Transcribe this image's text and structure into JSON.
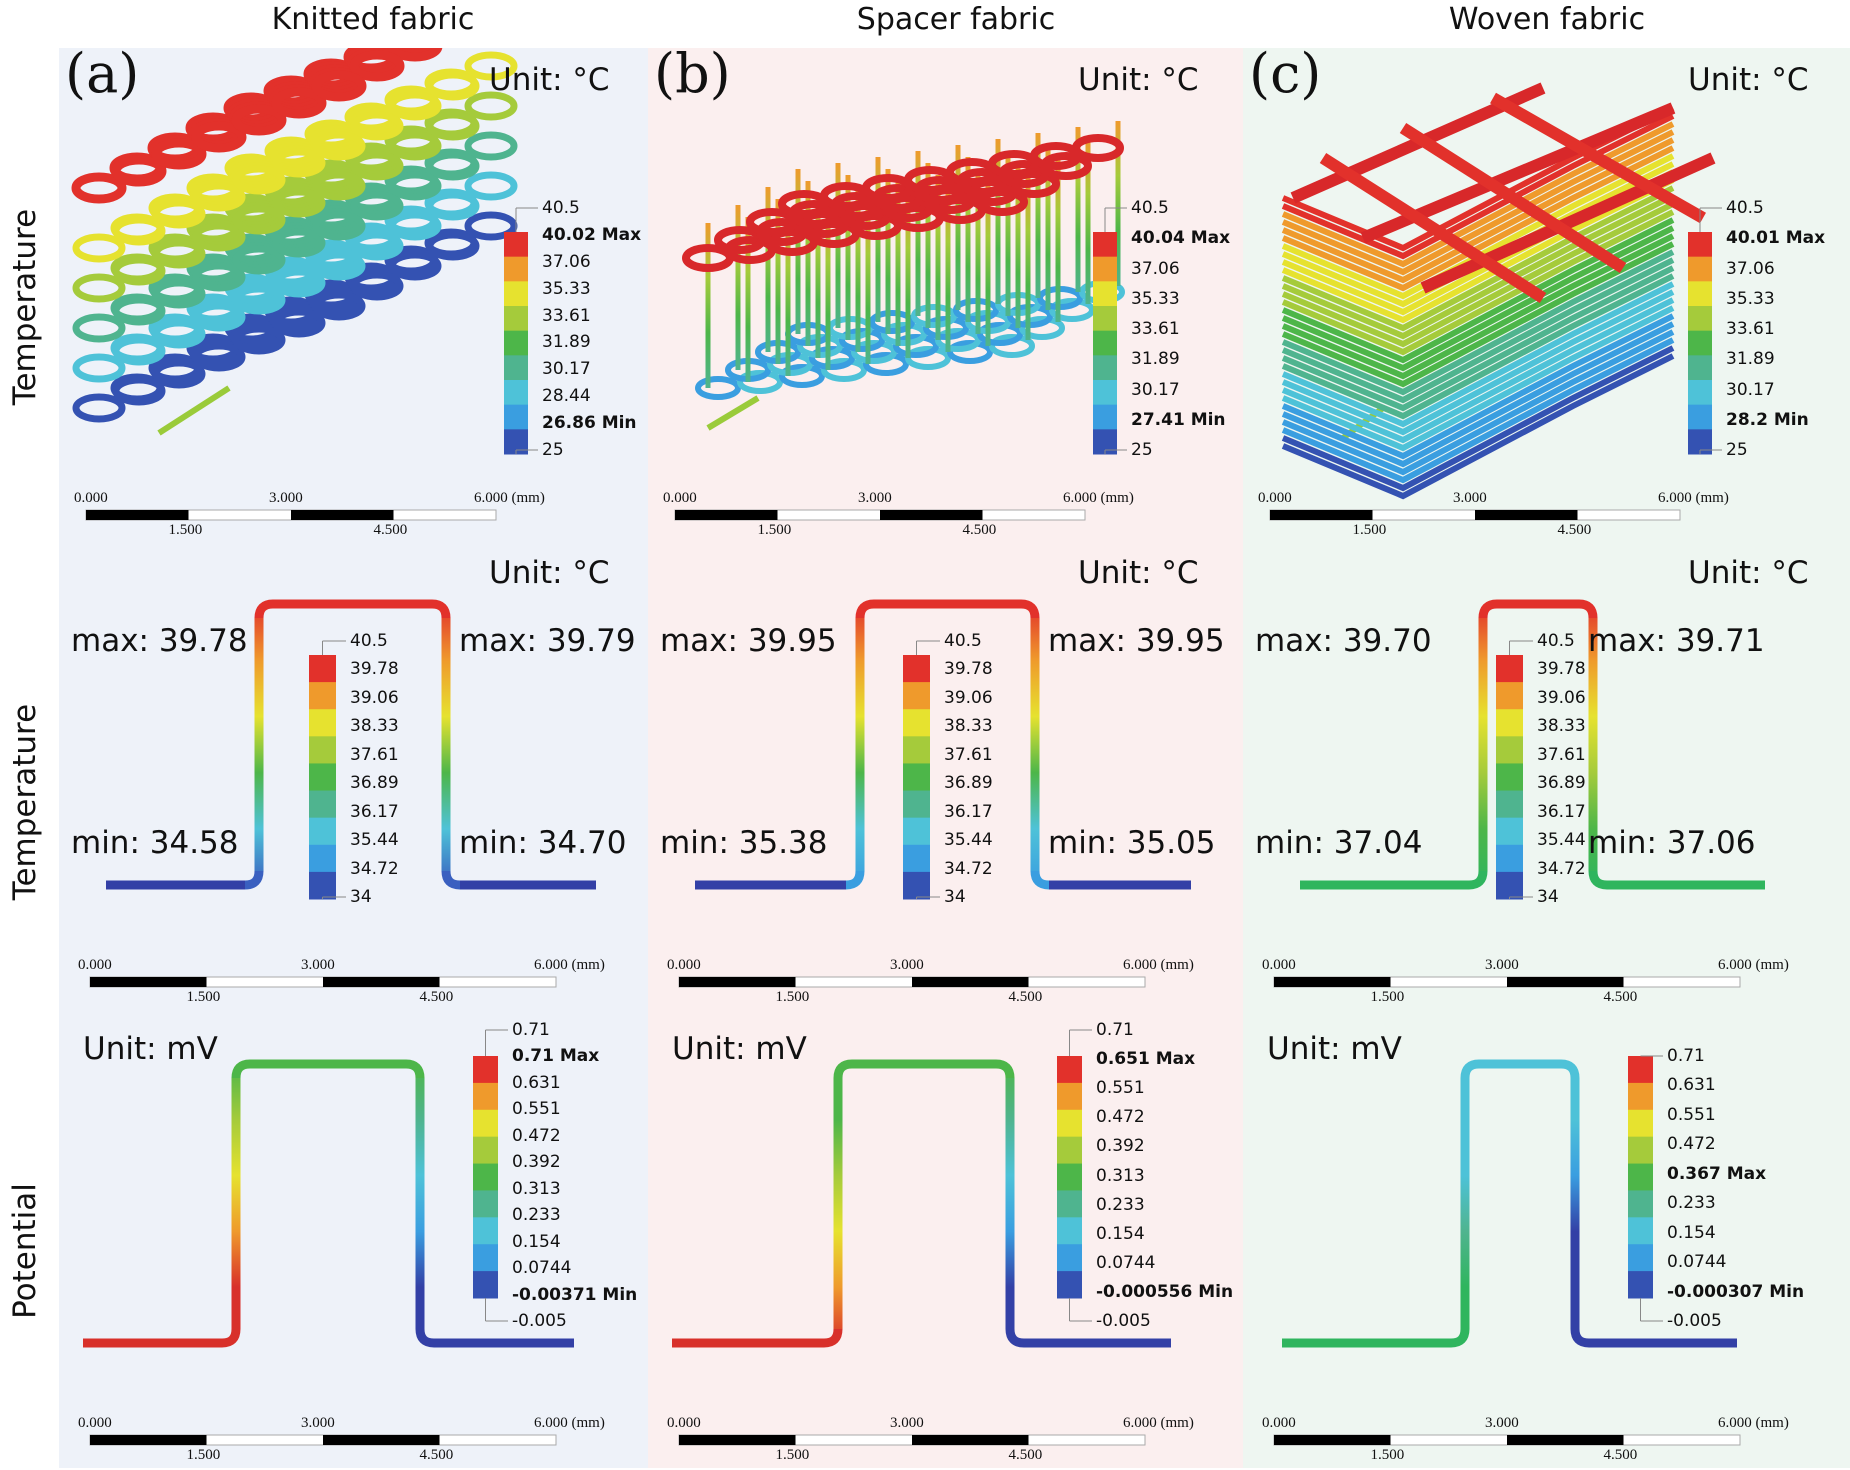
{
  "row_labels": [
    "Temperature",
    "Temperature",
    "Potential"
  ],
  "scale_bar": {
    "top": [
      "0.000",
      "3.000",
      "6.000 (mm)"
    ],
    "bottom": [
      "1.500",
      "4.500"
    ]
  },
  "legend_colors": [
    "#e2312b",
    "#ef9a2c",
    "#e6e22f",
    "#a5cb3b",
    "#4db649",
    "#4fb48f",
    "#4ec2d8",
    "#3a9ee0",
    "#3452b2"
  ],
  "columns": [
    {
      "title": "Knitted fabric",
      "label": "(a)",
      "background": "#eef2f9",
      "temp3d": {
        "unit": "Unit: °C",
        "legend": [
          {
            "text": "40.5"
          },
          {
            "text": "40.02 Max",
            "bold": true
          },
          {
            "text": "37.06"
          },
          {
            "text": "35.33"
          },
          {
            "text": "33.61"
          },
          {
            "text": "31.89"
          },
          {
            "text": "30.17"
          },
          {
            "text": "28.44"
          },
          {
            "text": "26.86 Min",
            "bold": true
          },
          {
            "text": "25"
          }
        ]
      },
      "temp2d": {
        "unit": "Unit: °C",
        "max_left": "max: 39.78",
        "max_right": "max: 39.79",
        "min_left": "min: 34.58",
        "min_right": "min: 34.70",
        "colors": {
          "left_base": "#3340a6",
          "left_leg": [
            "#3a60c0",
            "#4ec2d8",
            "#4db649",
            "#e6e22f",
            "#ef9a2c",
            "#e2312b"
          ],
          "top": "#e2312b",
          "right_leg": [
            "#e2312b",
            "#ef9a2c",
            "#e6e22f",
            "#4db649",
            "#4ec2d8",
            "#3a60c0"
          ],
          "right_base": "#3340a6"
        },
        "legend": [
          {
            "text": "40.5"
          },
          {
            "text": "39.78"
          },
          {
            "text": "39.06"
          },
          {
            "text": "38.33"
          },
          {
            "text": "37.61"
          },
          {
            "text": "36.89"
          },
          {
            "text": "36.17"
          },
          {
            "text": "35.44"
          },
          {
            "text": "34.72"
          },
          {
            "text": "34"
          }
        ]
      },
      "potential": {
        "unit": "Unit: mV",
        "colors": {
          "left_base": "#d8302a",
          "left_leg": [
            "#d8302a",
            "#d8302a",
            "#ef9a2c",
            "#e6e22f",
            "#a5cb3b",
            "#4db649"
          ],
          "top": "#4db649",
          "right_leg": [
            "#4db649",
            "#4fb48f",
            "#4ec2d8",
            "#3a9ee0",
            "#3340a6",
            "#3340a6"
          ],
          "right_base": "#3340a6"
        },
        "legend": [
          {
            "text": "0.71"
          },
          {
            "text": "0.71 Max",
            "bold": true
          },
          {
            "text": "0.631"
          },
          {
            "text": "0.551"
          },
          {
            "text": "0.472"
          },
          {
            "text": "0.392"
          },
          {
            "text": "0.313"
          },
          {
            "text": "0.233"
          },
          {
            "text": "0.154"
          },
          {
            "text": "0.0744"
          },
          {
            "text": "-0.00371 Min",
            "bold": true
          },
          {
            "text": "-0.005"
          }
        ]
      }
    },
    {
      "title": "Spacer fabric",
      "label": "(b)",
      "background": "#fbefef",
      "temp3d": {
        "unit": "Unit: °C",
        "legend": [
          {
            "text": "40.5"
          },
          {
            "text": "40.04 Max",
            "bold": true
          },
          {
            "text": "37.06"
          },
          {
            "text": "35.33"
          },
          {
            "text": "33.61"
          },
          {
            "text": "31.89"
          },
          {
            "text": "30.17"
          },
          {
            "text": "27.41 Min",
            "bold": true
          },
          {
            "text": "25"
          }
        ]
      },
      "temp2d": {
        "unit": "Unit: °C",
        "max_left": "max: 39.95",
        "max_right": "max: 39.95",
        "min_left": "min: 35.38",
        "min_right": "min: 35.05",
        "colors": {
          "left_base": "#3340a6",
          "left_leg": [
            "#3a9ee0",
            "#4ec2d8",
            "#4db649",
            "#e6e22f",
            "#ef9a2c",
            "#e2312b"
          ],
          "top": "#e2312b",
          "right_leg": [
            "#e2312b",
            "#ef9a2c",
            "#e6e22f",
            "#4db649",
            "#4ec2d8",
            "#3a9ee0"
          ],
          "right_base": "#3340a6"
        },
        "legend": [
          {
            "text": "40.5"
          },
          {
            "text": "39.78"
          },
          {
            "text": "39.06"
          },
          {
            "text": "38.33"
          },
          {
            "text": "37.61"
          },
          {
            "text": "36.89"
          },
          {
            "text": "36.17"
          },
          {
            "text": "35.44"
          },
          {
            "text": "34.72"
          },
          {
            "text": "34"
          }
        ]
      },
      "potential": {
        "unit": "Unit: mV",
        "colors": {
          "left_base": "#d8302a",
          "left_leg": [
            "#d8302a",
            "#ef9a2c",
            "#e6e22f",
            "#a5cb3b",
            "#4db649",
            "#4db649"
          ],
          "top": "#4db649",
          "right_leg": [
            "#4db649",
            "#4fb48f",
            "#4ec2d8",
            "#3a9ee0",
            "#3340a6",
            "#3340a6"
          ],
          "right_base": "#3340a6"
        },
        "legend": [
          {
            "text": "0.71"
          },
          {
            "text": "0.651 Max",
            "bold": true
          },
          {
            "text": "0.551"
          },
          {
            "text": "0.472"
          },
          {
            "text": "0.392"
          },
          {
            "text": "0.313"
          },
          {
            "text": "0.233"
          },
          {
            "text": "0.154"
          },
          {
            "text": "0.0744"
          },
          {
            "text": "-0.000556 Min",
            "bold": true
          },
          {
            "text": "-0.005"
          }
        ]
      }
    },
    {
      "title": "Woven fabric",
      "label": "(c)",
      "background": "#eef6f1",
      "temp3d": {
        "unit": "Unit: °C",
        "legend": [
          {
            "text": "40.5"
          },
          {
            "text": "40.01 Max",
            "bold": true
          },
          {
            "text": "37.06"
          },
          {
            "text": "35.33"
          },
          {
            "text": "33.61"
          },
          {
            "text": "31.89"
          },
          {
            "text": "30.17"
          },
          {
            "text": "28.2 Min",
            "bold": true
          },
          {
            "text": "25"
          }
        ]
      },
      "temp2d": {
        "unit": "Unit: °C",
        "max_left": "max: 39.70",
        "max_right": "max: 39.71",
        "min_left": "min: 37.04",
        "min_right": "min: 37.06",
        "colors": {
          "left_base": "#2fb55e",
          "left_leg": [
            "#2fb55e",
            "#4db649",
            "#a5cb3b",
            "#e6e22f",
            "#ef9a2c",
            "#e2312b"
          ],
          "top": "#e2312b",
          "right_leg": [
            "#e2312b",
            "#ef9a2c",
            "#e6e22f",
            "#a5cb3b",
            "#4db649",
            "#2fb55e"
          ],
          "right_base": "#2fb55e"
        },
        "legend": [
          {
            "text": "40.5"
          },
          {
            "text": "39.78"
          },
          {
            "text": "39.06"
          },
          {
            "text": "38.33"
          },
          {
            "text": "37.61"
          },
          {
            "text": "36.89"
          },
          {
            "text": "36.17"
          },
          {
            "text": "35.44"
          },
          {
            "text": "34.72"
          },
          {
            "text": "34"
          }
        ]
      },
      "potential": {
        "unit": "Unit: mV",
        "colors": {
          "left_base": "#2fb55e",
          "left_leg": [
            "#2fb55e",
            "#2fb55e",
            "#4fb48f",
            "#4ec2d8",
            "#4ec2d8",
            "#4ec2d8"
          ],
          "top": "#4ec2d8",
          "right_leg": [
            "#4ec2d8",
            "#4ec2d8",
            "#3a9ee0",
            "#3340a6",
            "#3340a6",
            "#3340a6"
          ],
          "right_base": "#3340a6"
        },
        "legend": [
          {
            "text": "0.71"
          },
          {
            "text": "0.631"
          },
          {
            "text": "0.551"
          },
          {
            "text": "0.472"
          },
          {
            "text": "0.367 Max",
            "bold": true
          },
          {
            "text": "0.233"
          },
          {
            "text": "0.154"
          },
          {
            "text": "0.0744"
          },
          {
            "text": "-0.000307 Min",
            "bold": true
          },
          {
            "text": "-0.005"
          }
        ]
      }
    }
  ]
}
